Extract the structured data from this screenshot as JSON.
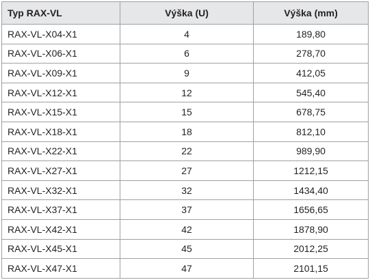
{
  "table": {
    "header": [
      "Typ RAX-VL",
      "Výška (U)",
      "Výška (mm)"
    ],
    "rows": [
      [
        "RAX-VL-X04-X1",
        "4",
        "189,80"
      ],
      [
        "RAX-VL-X06-X1",
        "6",
        "278,70"
      ],
      [
        "RAX-VL-X09-X1",
        "9",
        "412,05"
      ],
      [
        "RAX-VL-X12-X1",
        "12",
        "545,40"
      ],
      [
        "RAX-VL-X15-X1",
        "15",
        "678,75"
      ],
      [
        "RAX-VL-X18-X1",
        "18",
        "812,10"
      ],
      [
        "RAX-VL-X22-X1",
        "22",
        "989,90"
      ],
      [
        "RAX-VL-X27-X1",
        "27",
        "1212,15"
      ],
      [
        "RAX-VL-X32-X1",
        "32",
        "1434,40"
      ],
      [
        "RAX-VL-X37-X1",
        "37",
        "1656,65"
      ],
      [
        "RAX-VL-X42-X1",
        "42",
        "1878,90"
      ],
      [
        "RAX-VL-X45-X1",
        "45",
        "2012,25"
      ],
      [
        "RAX-VL-X47-X1",
        "47",
        "2101,15"
      ]
    ]
  }
}
